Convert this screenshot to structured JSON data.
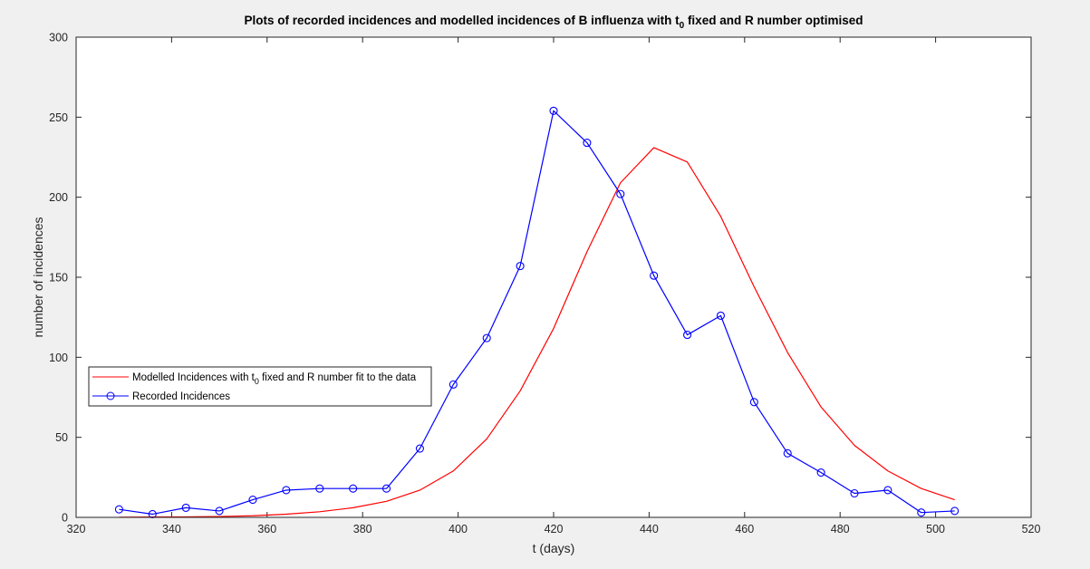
{
  "chart_data": {
    "type": "line",
    "title": "Plots of recorded incidences and modelled incidences of B influenza with t",
    "title_subscript": "0",
    "title_suffix": " fixed and R number optimised",
    "xlabel": "t (days)",
    "ylabel": "number of incidences",
    "xlim": [
      320,
      520
    ],
    "ylim": [
      0,
      300
    ],
    "xticks": [
      320,
      340,
      360,
      380,
      400,
      420,
      440,
      460,
      480,
      500,
      520
    ],
    "yticks": [
      0,
      50,
      100,
      150,
      200,
      250,
      300
    ],
    "grid": false,
    "legend_position": "middle-left",
    "series": [
      {
        "name": "Modelled Incidences with t",
        "name_subscript": "0",
        "name_suffix": " fixed and R number fit to the data",
        "color": "#ff0000",
        "marker": "none",
        "x": [
          329,
          336,
          343,
          350,
          357,
          364,
          371,
          378,
          385,
          392,
          399,
          406,
          413,
          420,
          427,
          434,
          441,
          448,
          455,
          462,
          469,
          476,
          483,
          490,
          497,
          504
        ],
        "y": [
          0.1,
          0.2,
          0.3,
          0.5,
          1,
          2,
          3.5,
          6,
          10,
          17,
          29,
          49,
          79,
          118,
          166,
          209,
          231,
          222,
          188,
          144,
          103,
          69,
          45,
          29,
          18,
          11
        ]
      },
      {
        "name": "Recorded Incidences",
        "color": "#0000ff",
        "marker": "circle",
        "x": [
          329,
          336,
          343,
          350,
          357,
          364,
          371,
          378,
          385,
          392,
          399,
          406,
          413,
          420,
          427,
          434,
          441,
          448,
          455,
          462,
          469,
          476,
          483,
          490,
          497,
          504
        ],
        "y": [
          5,
          2,
          6,
          4,
          11,
          17,
          18,
          18,
          18,
          43,
          83,
          112,
          157,
          254,
          234,
          202,
          151,
          114,
          126,
          72,
          40,
          28,
          15,
          17,
          3,
          4
        ]
      }
    ]
  }
}
